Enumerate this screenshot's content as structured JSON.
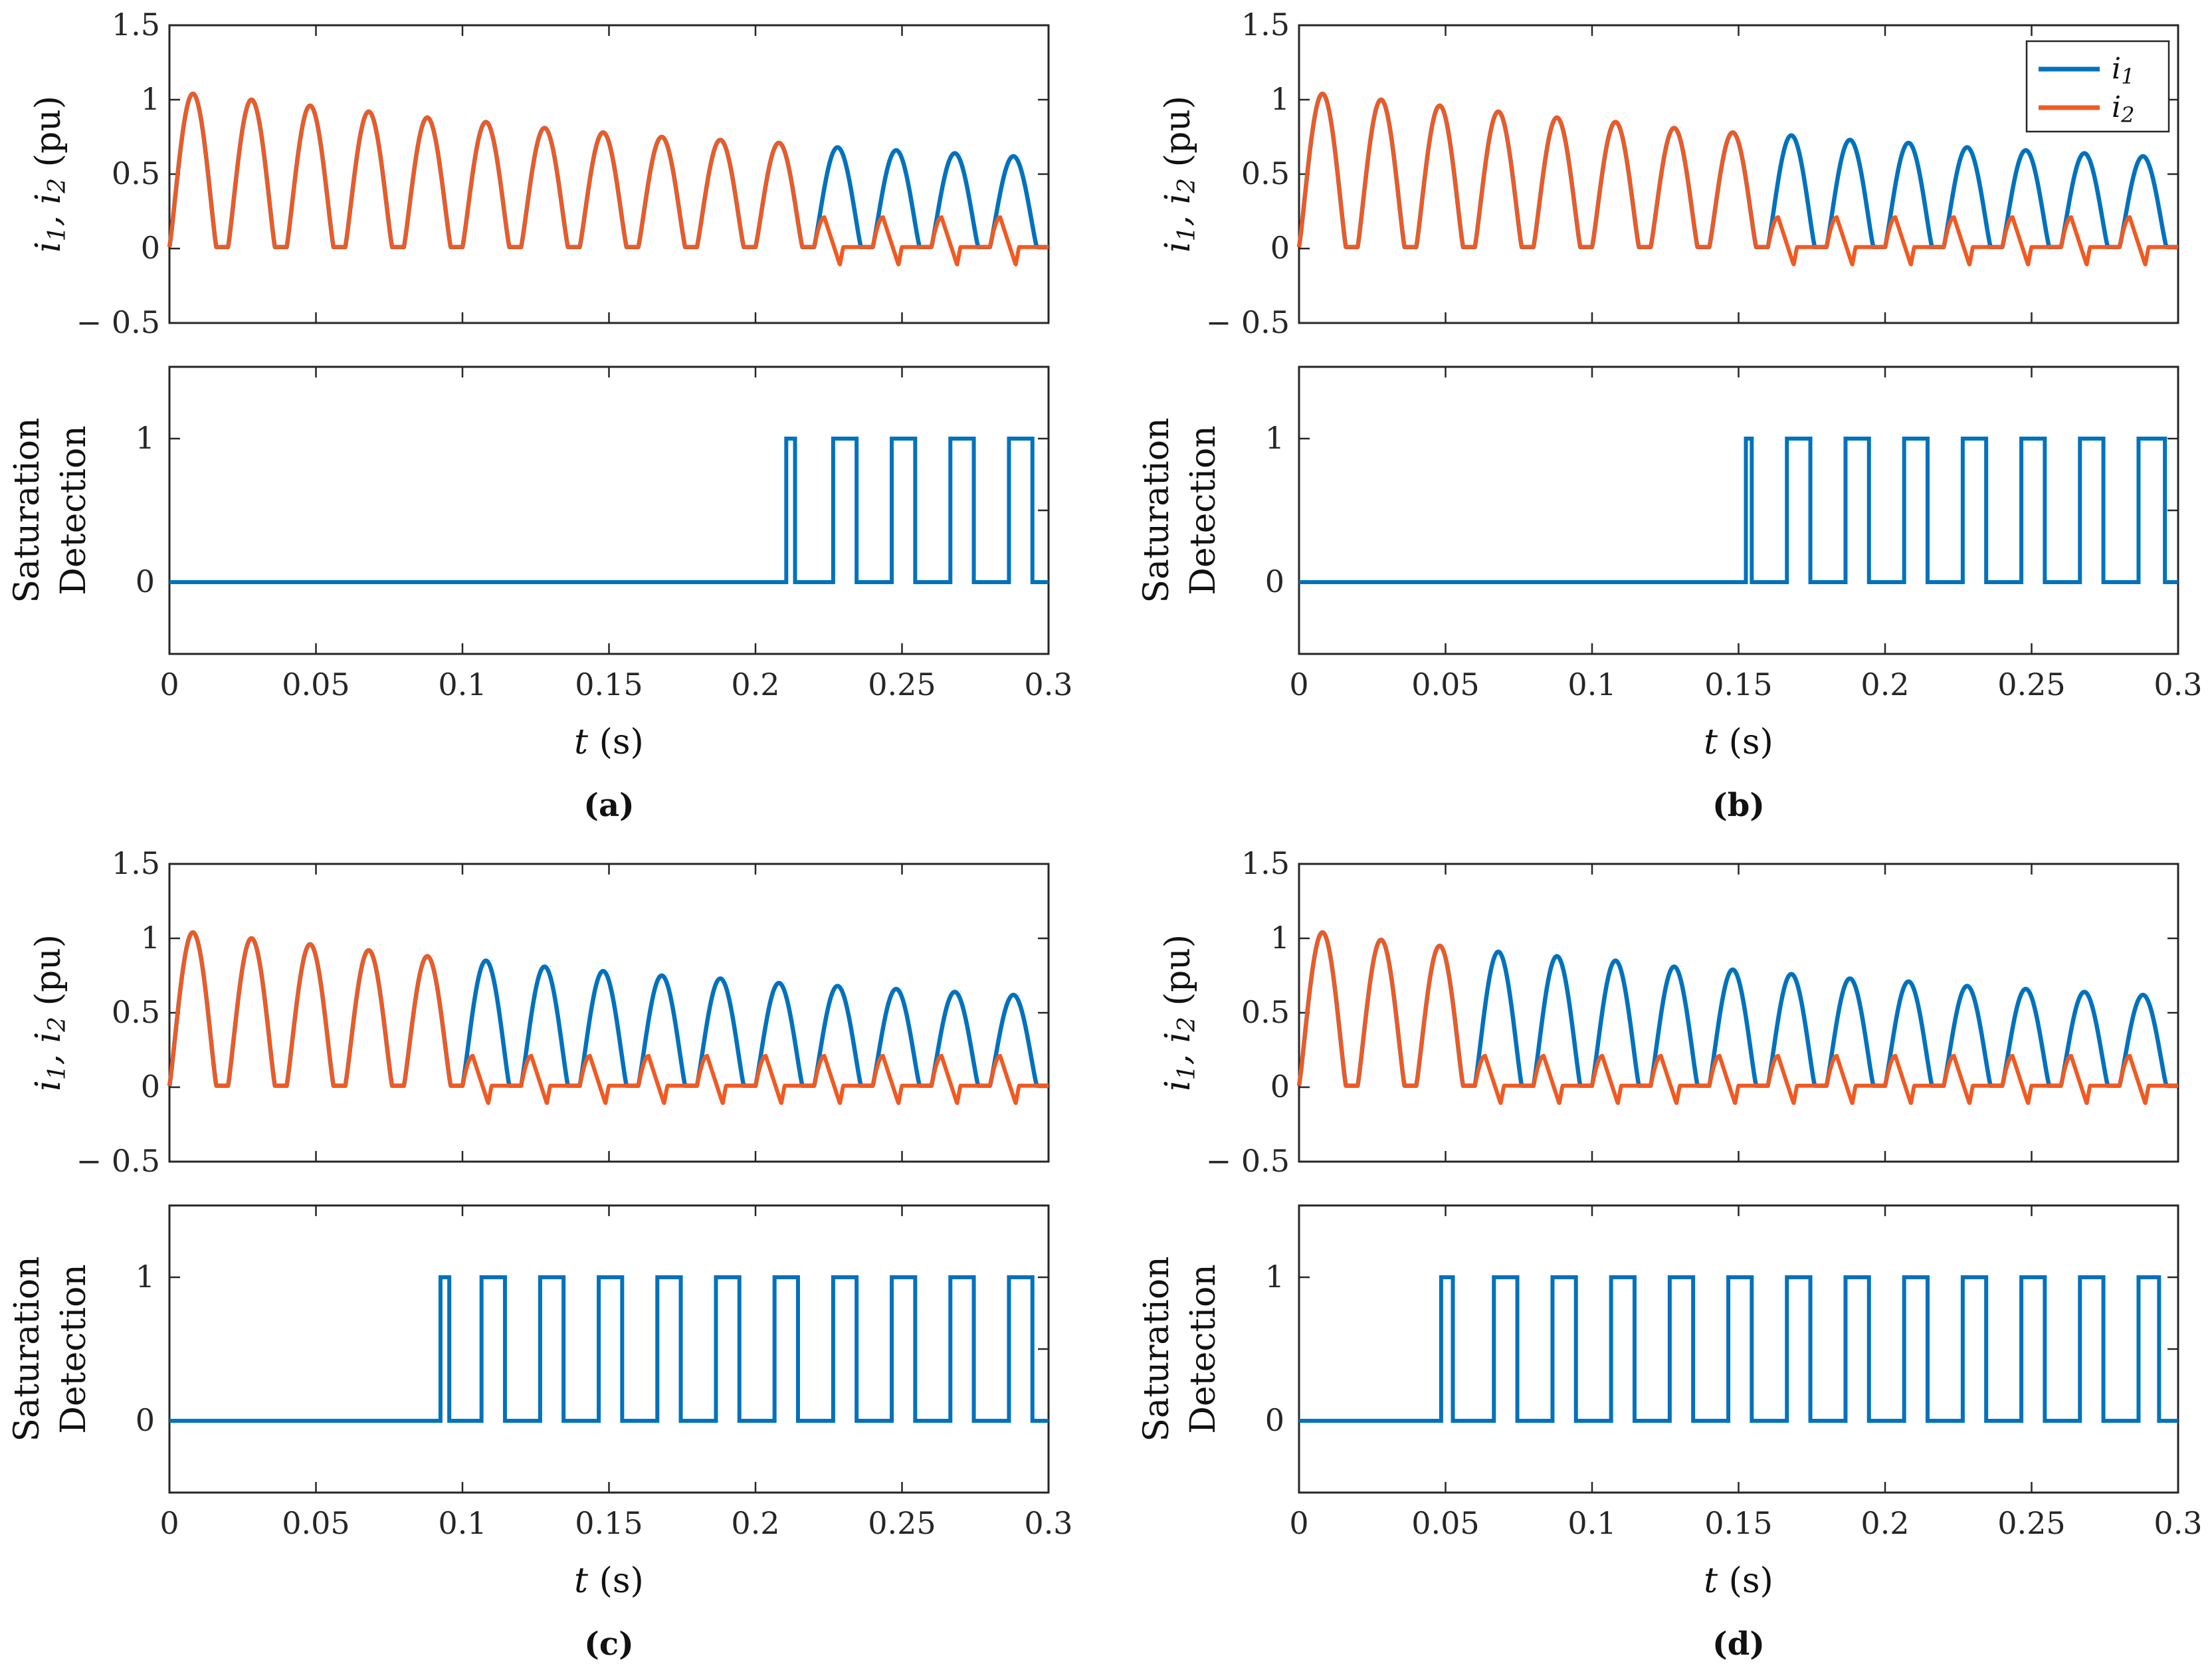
{
  "colors": {
    "i1": "#0072BD",
    "i2": "#F05A22",
    "axis": "#262626"
  },
  "chart_data": [
    {
      "type": "line",
      "caption": "(a)",
      "saturation_onset_s": 0.21,
      "current_panel": {
        "ylabel_main": "i",
        "ylabel_sub1": "1",
        "ylabel_sep": ", i",
        "ylabel_sub2": "2",
        "ylabel_unit": " (pu)",
        "xlim": [
          0,
          0.3
        ],
        "ylim": [
          -0.5,
          1.5
        ],
        "yticks": [
          "1.5",
          "1",
          "0.5",
          "0",
          "− 0.5"
        ],
        "series": [
          {
            "name": "i1",
            "peaks_t": [
              0.01,
              0.03,
              0.05,
              0.07,
              0.09,
              0.11,
              0.13,
              0.15,
              0.17,
              0.19,
              0.21,
              0.23,
              0.25,
              0.27,
              0.29
            ],
            "peaks": [
              1.03,
              0.99,
              0.95,
              0.91,
              0.87,
              0.84,
              0.8,
              0.77,
              0.74,
              0.72,
              0.7,
              0.67,
              0.65,
              0.63,
              0.61
            ]
          },
          {
            "name": "i2",
            "description": "follows i1 until saturation onset, then small distorted pulses ~0.2 pu with negative dips ~ -0.12 pu"
          }
        ]
      },
      "detection_panel": {
        "ylabel_line1": "Saturation",
        "ylabel_line2": "Detection",
        "ylim": [
          -0.5,
          1.5
        ],
        "yticks": [
          "1",
          "0"
        ],
        "high_intervals": [
          [
            0.2105,
            0.2135
          ],
          [
            0.2265,
            0.2345
          ],
          [
            0.2465,
            0.2545
          ],
          [
            0.2665,
            0.2745
          ],
          [
            0.2865,
            0.2945
          ]
        ]
      },
      "xlabel_var": "t",
      "xlabel_unit": " (s)",
      "xticks": [
        "0",
        "0.05",
        "0.1",
        "0.15",
        "0.2",
        "0.25",
        "0.3"
      ]
    },
    {
      "type": "line",
      "caption": "(b)",
      "saturation_onset_s": 0.15,
      "current_panel": {
        "ylabel_main": "i",
        "ylabel_sub1": "1",
        "ylabel_sep": ", i",
        "ylabel_sub2": "2",
        "ylabel_unit": " (pu)",
        "xlim": [
          0,
          0.3
        ],
        "ylim": [
          -0.5,
          1.5
        ],
        "yticks": [
          "1.5",
          "1",
          "0.5",
          "0",
          "− 0.5"
        ],
        "series": [
          {
            "name": "i1",
            "peaks_t": [
              0.01,
              0.03,
              0.05,
              0.07,
              0.09,
              0.11,
              0.13,
              0.15,
              0.17,
              0.19,
              0.21,
              0.23,
              0.25,
              0.27,
              0.29
            ],
            "peaks": [
              1.03,
              0.99,
              0.95,
              0.91,
              0.87,
              0.84,
              0.8,
              0.77,
              0.75,
              0.72,
              0.7,
              0.67,
              0.65,
              0.63,
              0.61
            ]
          },
          {
            "name": "i2",
            "description": "follows i1 until saturation onset, then small distorted pulses ~0.2 pu with negative dips ~ -0.1 pu"
          }
        ]
      },
      "detection_panel": {
        "ylabel_line1": "Saturation",
        "ylabel_line2": "Detection",
        "ylim": [
          -0.5,
          1.5
        ],
        "yticks": [
          "1",
          "0"
        ],
        "high_intervals": [
          [
            0.1525,
            0.1545
          ],
          [
            0.1665,
            0.1745
          ],
          [
            0.1865,
            0.1945
          ],
          [
            0.2065,
            0.2145
          ],
          [
            0.2265,
            0.2345
          ],
          [
            0.2465,
            0.2545
          ],
          [
            0.2665,
            0.2745
          ],
          [
            0.2865,
            0.2955
          ]
        ]
      },
      "legend": [
        {
          "name": "i",
          "sub": "1"
        },
        {
          "name": "i",
          "sub": "2"
        }
      ],
      "xlabel_var": "t",
      "xlabel_unit": " (s)",
      "xticks": [
        "0",
        "0.05",
        "0.1",
        "0.15",
        "0.2",
        "0.25",
        "0.3"
      ]
    },
    {
      "type": "line",
      "caption": "(c)",
      "saturation_onset_s": 0.09,
      "current_panel": {
        "ylabel_main": "i",
        "ylabel_sub1": "1",
        "ylabel_sep": ", i",
        "ylabel_sub2": "2",
        "ylabel_unit": " (pu)",
        "xlim": [
          0,
          0.3
        ],
        "ylim": [
          -0.5,
          1.5
        ],
        "yticks": [
          "1.5",
          "1",
          "0.5",
          "0",
          "− 0.5"
        ],
        "series": [
          {
            "name": "i1",
            "peaks_t": [
              0.01,
              0.03,
              0.05,
              0.07,
              0.09,
              0.11,
              0.13,
              0.15,
              0.17,
              0.19,
              0.21,
              0.23,
              0.25,
              0.27,
              0.29
            ],
            "peaks": [
              1.03,
              0.99,
              0.95,
              0.91,
              0.87,
              0.84,
              0.8,
              0.77,
              0.74,
              0.72,
              0.69,
              0.67,
              0.65,
              0.63,
              0.61
            ]
          },
          {
            "name": "i2",
            "description": "follows i1 until saturation onset, then small distorted pulses ~0.2 pu with negative dips ~ -0.1 pu"
          }
        ]
      },
      "detection_panel": {
        "ylabel_line1": "Saturation",
        "ylabel_line2": "Detection",
        "ylim": [
          -0.5,
          1.5
        ],
        "yticks": [
          "1",
          "0"
        ],
        "high_intervals": [
          [
            0.0925,
            0.0955
          ],
          [
            0.1065,
            0.1145
          ],
          [
            0.1265,
            0.1345
          ],
          [
            0.1465,
            0.1545
          ],
          [
            0.1665,
            0.1745
          ],
          [
            0.1865,
            0.1945
          ],
          [
            0.2065,
            0.2145
          ],
          [
            0.2265,
            0.2345
          ],
          [
            0.2465,
            0.2545
          ],
          [
            0.2665,
            0.2745
          ],
          [
            0.2865,
            0.2945
          ]
        ]
      },
      "xlabel_var": "t",
      "xlabel_unit": " (s)",
      "xticks": [
        "0",
        "0.05",
        "0.1",
        "0.15",
        "0.2",
        "0.25",
        "0.3"
      ]
    },
    {
      "type": "line",
      "caption": "(d)",
      "saturation_onset_s": 0.05,
      "current_panel": {
        "ylabel_main": "i",
        "ylabel_sub1": "1",
        "ylabel_sep": ", i",
        "ylabel_sub2": "2",
        "ylabel_unit": " (pu)",
        "xlim": [
          0,
          0.3
        ],
        "ylim": [
          -0.5,
          1.5
        ],
        "yticks": [
          "1.5",
          "1",
          "0.5",
          "0",
          "− 0.5"
        ],
        "series": [
          {
            "name": "i1",
            "peaks_t": [
              0.01,
              0.03,
              0.05,
              0.07,
              0.09,
              0.11,
              0.13,
              0.15,
              0.17,
              0.19,
              0.21,
              0.23,
              0.25,
              0.27,
              0.29
            ],
            "peaks": [
              1.03,
              0.98,
              0.94,
              0.9,
              0.87,
              0.84,
              0.8,
              0.78,
              0.75,
              0.72,
              0.7,
              0.67,
              0.65,
              0.63,
              0.61
            ]
          },
          {
            "name": "i2",
            "description": "follows i1 until saturation onset, then small distorted pulses ~0.2 pu with small negative dips"
          }
        ]
      },
      "detection_panel": {
        "ylabel_line1": "Saturation",
        "ylabel_line2": "Detection",
        "ylim": [
          -0.5,
          1.5
        ],
        "yticks": [
          "1",
          "0"
        ],
        "high_intervals": [
          [
            0.0485,
            0.0525
          ],
          [
            0.0665,
            0.0745
          ],
          [
            0.0865,
            0.0945
          ],
          [
            0.1065,
            0.1145
          ],
          [
            0.1265,
            0.1345
          ],
          [
            0.1465,
            0.1545
          ],
          [
            0.1665,
            0.1745
          ],
          [
            0.1865,
            0.1945
          ],
          [
            0.2065,
            0.2145
          ],
          [
            0.2265,
            0.2345
          ],
          [
            0.2465,
            0.2545
          ],
          [
            0.2665,
            0.2745
          ],
          [
            0.2865,
            0.2935
          ]
        ]
      },
      "xlabel_var": "t",
      "xlabel_unit": " (s)",
      "xticks": [
        "0",
        "0.05",
        "0.1",
        "0.15",
        "0.2",
        "0.25",
        "0.3"
      ]
    }
  ]
}
